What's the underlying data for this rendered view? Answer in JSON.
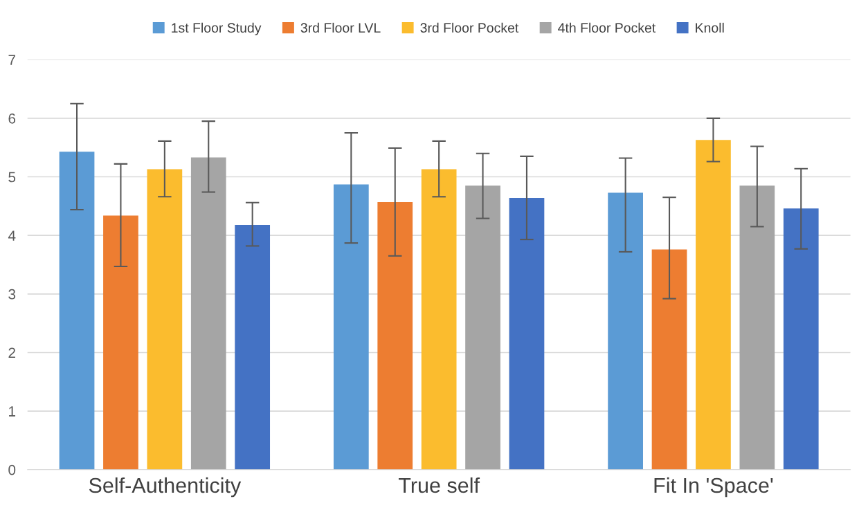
{
  "chart_data": {
    "type": "bar",
    "categories": [
      "Self-Authenticity",
      "True self",
      "Fit In 'Space'"
    ],
    "series": [
      {
        "name": "1st Floor Study",
        "color": "#5b9bd5",
        "values": [
          5.43,
          4.87,
          4.73
        ],
        "errors": [
          [
            4.44,
            6.25
          ],
          [
            3.87,
            5.75
          ],
          [
            3.72,
            5.32
          ]
        ]
      },
      {
        "name": "3rd Floor LVL",
        "color": "#ed7d31",
        "values": [
          4.34,
          4.57,
          3.76
        ],
        "errors": [
          [
            3.47,
            5.22
          ],
          [
            3.65,
            5.49
          ],
          [
            2.92,
            4.65
          ]
        ]
      },
      {
        "name": "3rd Floor Pocket",
        "color": "#fbbc2e",
        "values": [
          5.13,
          5.13,
          5.63
        ],
        "errors": [
          [
            4.66,
            5.61
          ],
          [
            4.66,
            5.61
          ],
          [
            5.26,
            6.0
          ]
        ]
      },
      {
        "name": "4th Floor Pocket",
        "color": "#a5a5a5",
        "values": [
          5.33,
          4.85,
          4.85
        ],
        "errors": [
          [
            4.74,
            5.95
          ],
          [
            4.29,
            5.4
          ],
          [
            4.15,
            5.52
          ]
        ]
      },
      {
        "name": "Knoll",
        "color": "#4472c4",
        "values": [
          4.18,
          4.64,
          4.46
        ],
        "errors": [
          [
            3.82,
            4.56
          ],
          [
            3.93,
            5.35
          ],
          [
            3.77,
            5.14
          ]
        ]
      }
    ],
    "ylim": [
      0,
      7
    ],
    "yticks": [
      0,
      1,
      2,
      3,
      4,
      5,
      6,
      7
    ],
    "grid": "y",
    "legend": "top"
  }
}
